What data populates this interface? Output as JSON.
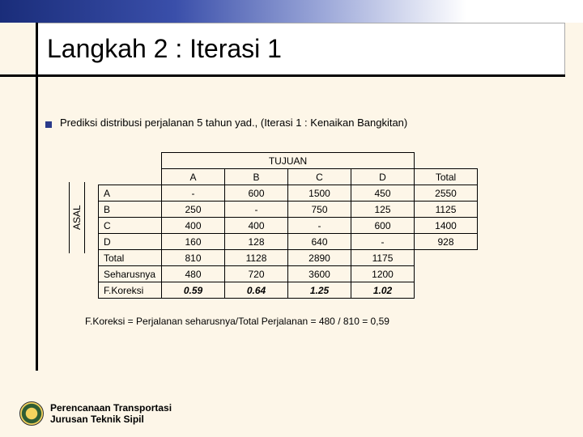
{
  "slide": {
    "title": "Langkah 2 : Iterasi 1",
    "caption": "Prediksi distribusi perjalanan  5 tahun yad., (Iterasi 1 : Kenaikan Bangkitan)",
    "formula": "F.Koreksi =    Perjalanan seharusnya/Total Perjalanan = 480 / 810 = 0,59"
  },
  "table": {
    "dest_header": "TUJUAN",
    "origin_header": "ASAL",
    "col_labels": [
      "A",
      "B",
      "C",
      "D",
      "Total"
    ],
    "rows": [
      {
        "label": "A",
        "cells": [
          "-",
          "600",
          "1500",
          "450",
          "2550"
        ]
      },
      {
        "label": "B",
        "cells": [
          "250",
          "-",
          "750",
          "125",
          "1125"
        ]
      },
      {
        "label": "C",
        "cells": [
          "400",
          "400",
          "-",
          "600",
          "1400"
        ]
      },
      {
        "label": "D",
        "cells": [
          "160",
          "128",
          "640",
          "-",
          "928"
        ]
      }
    ],
    "total": {
      "label": "Total",
      "cells": [
        "810",
        "1128",
        "2890",
        "1175",
        ""
      ]
    },
    "seharusnya": {
      "label": "Seharusnya",
      "cells": [
        "480",
        "720",
        "3600",
        "1200",
        ""
      ]
    },
    "fkoreksi": {
      "label": "F.Koreksi",
      "cells": [
        "0.59",
        "0.64",
        "1.25",
        "1.02",
        ""
      ]
    }
  },
  "footer": {
    "line1": "Perencanaan Transportasi",
    "line2": "Jurusan Teknik Sipil"
  },
  "style": {
    "background_color": "#fdf6e8",
    "accent_gradient": [
      "#1a2d7a",
      "#ffffff"
    ],
    "rule_color": "#000000",
    "font_family": "Verdana",
    "title_fontsize": 32,
    "body_fontsize": 12
  }
}
